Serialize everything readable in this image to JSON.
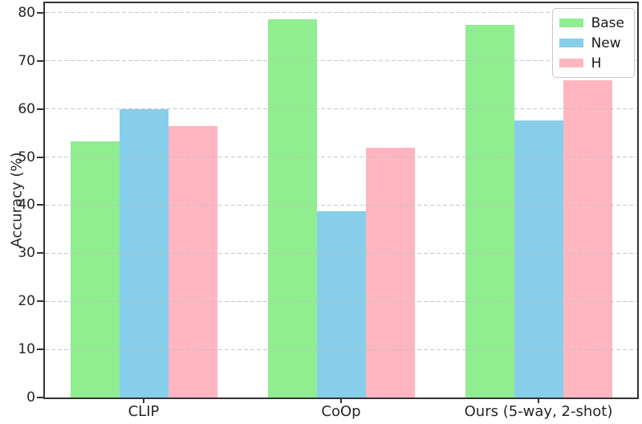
{
  "chart_data": {
    "type": "bar",
    "title": "",
    "xlabel": "",
    "ylabel": "Accuracy (%)",
    "categories": [
      "CLIP",
      "CoOp",
      "Ours (5-way, 2-shot)"
    ],
    "series": [
      {
        "name": "Base",
        "color": "#90EE90",
        "values": [
          53.3,
          78.6,
          77.5
        ]
      },
      {
        "name": "New",
        "color": "#87CEEB",
        "values": [
          60.0,
          38.8,
          57.6
        ]
      },
      {
        "name": "H",
        "color": "#FFB6C1",
        "values": [
          56.4,
          52.0,
          66.0
        ]
      }
    ],
    "ylim": [
      0,
      82
    ],
    "yticks": [
      0,
      10,
      20,
      30,
      40,
      50,
      60,
      70,
      80
    ],
    "grid": "horizontal-dashed-above-bars",
    "legend_position": "upper-right",
    "legend_entries": [
      "Base",
      "New",
      "H"
    ]
  }
}
